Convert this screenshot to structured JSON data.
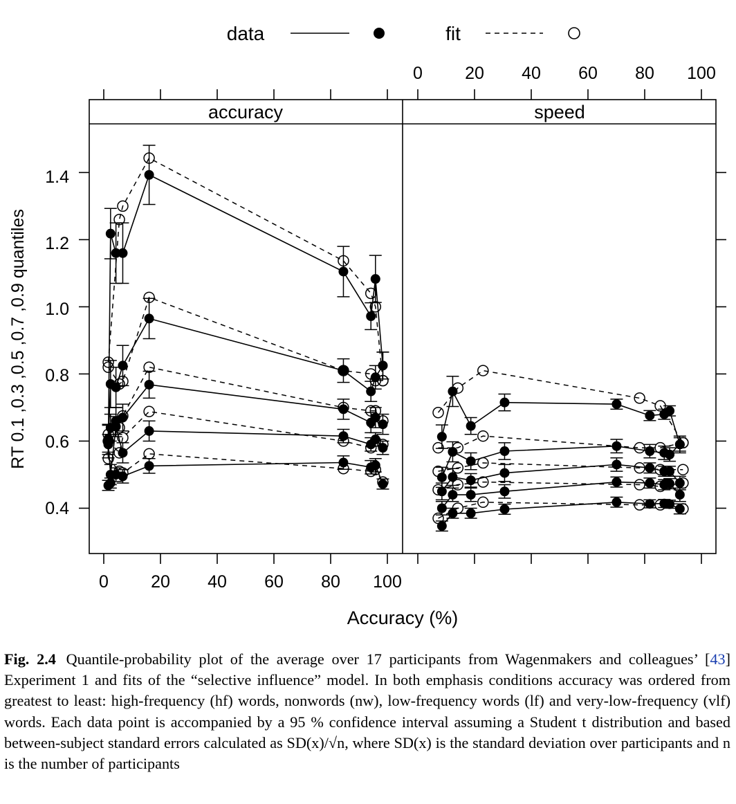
{
  "legend": {
    "data_label": "data",
    "fit_label": "fit"
  },
  "axes": {
    "xlabel": "Accuracy (%)",
    "ylabel": "RT 0.1 ,0.3 ,0.5 ,0.7 ,0.9 quantiles",
    "x_ticks": [
      "0",
      "20",
      "40",
      "60",
      "80",
      "100"
    ],
    "y_ticks": [
      "0.4",
      "0.6",
      "0.8",
      "1.0",
      "1.2",
      "1.4"
    ]
  },
  "panels": {
    "accuracy": "accuracy",
    "speed": "speed"
  },
  "caption": {
    "label": "Fig. 2.4",
    "before_cite": "Quantile-probability plot of the average over 17 participants from Wagenmakers and colleagues’ [",
    "cite": "43",
    "after_cite": "] Experiment 1 and fits of the “selective influence” model. In both emphasis conditions accuracy was ordered from greatest to least: high-frequency (hf) words, nonwords (nw), low-frequency words (lf) and very-low-frequency (vlf) words. Each data point is accompanied by a 95 % confidence interval assuming a Student t distribution and based between-subject standard errors calculated as SD(x)/√n, where SD(x) is the standard deviation over participants and n is the number of participants"
  },
  "chart_data": {
    "type": "line",
    "xlim": [
      -4,
      104
    ],
    "ylim": [
      0.265,
      1.545
    ],
    "grid": false,
    "legend_position": "top",
    "series_styles": {
      "data": "solid line, filled circles, 95% CI error bars",
      "fit": "dashed line, open circles"
    },
    "panels": [
      {
        "name": "accuracy",
        "data_x": [
          1.6,
          2.4,
          4.3,
          6.7,
          16,
          84.5,
          94.2,
          95.8,
          98.4
        ],
        "data_quantiles": [
          [
            0.468,
            0.475,
            0.5,
            0.495,
            0.526,
            0.536,
            0.522,
            0.528,
            0.472
          ],
          [
            0.59,
            0.5,
            0.643,
            0.565,
            0.63,
            0.615,
            0.59,
            0.605,
            0.58
          ],
          [
            0.607,
            0.64,
            0.66,
            0.67,
            0.768,
            0.695,
            0.655,
            0.67,
            0.65
          ],
          [
            0.6,
            0.77,
            0.76,
            0.825,
            0.965,
            0.81,
            0.748,
            0.79,
            0.825
          ],
          [
            0.6,
            1.218,
            1.16,
            1.16,
            1.393,
            1.105,
            0.972,
            1.083,
            0.825
          ]
        ],
        "data_ci": [
          [
            0.015,
            0.015,
            0.02,
            0.02,
            0.022,
            0.02,
            0.02,
            0.02,
            0.015
          ],
          [
            0.03,
            0.03,
            0.03,
            0.03,
            0.03,
            0.02,
            0.02,
            0.02,
            0.02
          ],
          [
            0.04,
            0.04,
            0.04,
            0.04,
            0.04,
            0.03,
            0.03,
            0.03,
            0.03
          ],
          [
            0.05,
            0.07,
            0.06,
            0.06,
            0.06,
            0.035,
            0.03,
            0.035,
            0.04
          ],
          [
            0.05,
            0.075,
            0.09,
            0.09,
            0.088,
            0.075,
            0.04,
            0.07,
            0.04
          ]
        ],
        "fit_x": [
          1.6,
          5.5,
          6.7,
          16,
          84.5,
          94.2,
          95.8,
          98.4
        ],
        "fit_quantiles": [
          [
            0.548,
            0.51,
            0.505,
            0.562,
            0.518,
            0.51,
            0.515,
            0.478
          ],
          [
            0.6,
            0.565,
            0.61,
            0.688,
            0.6,
            0.58,
            0.6,
            0.59
          ],
          [
            0.62,
            0.64,
            0.675,
            0.82,
            0.7,
            0.69,
            0.69,
            0.66
          ],
          [
            0.82,
            0.77,
            0.778,
            1.028,
            0.81,
            0.8,
            0.78,
            0.78
          ],
          [
            0.835,
            1.26,
            1.3,
            1.443,
            1.137,
            1.04,
            1.0,
            0.78
          ]
        ]
      },
      {
        "name": "speed",
        "data_x": [
          8.5,
          12.3,
          18.7,
          30.6,
          70.1,
          81.8,
          86.9,
          88.8,
          92.4
        ],
        "data_quantiles": [
          [
            0.347,
            0.385,
            0.385,
            0.397,
            0.418,
            0.413,
            0.414,
            0.412,
            0.398
          ],
          [
            0.4,
            0.44,
            0.44,
            0.45,
            0.478,
            0.475,
            0.47,
            0.473,
            0.44
          ],
          [
            0.45,
            0.493,
            0.483,
            0.505,
            0.53,
            0.52,
            0.51,
            0.51,
            0.475
          ],
          [
            0.492,
            0.568,
            0.54,
            0.57,
            0.585,
            0.57,
            0.565,
            0.56,
            0.59
          ],
          [
            0.613,
            0.748,
            0.645,
            0.715,
            0.71,
            0.676,
            0.68,
            0.69,
            0.59
          ]
        ],
        "data_ci": [
          [
            0.015,
            0.015,
            0.015,
            0.015,
            0.015,
            0.012,
            0.012,
            0.012,
            0.015
          ],
          [
            0.02,
            0.02,
            0.02,
            0.02,
            0.015,
            0.015,
            0.015,
            0.015,
            0.02
          ],
          [
            0.025,
            0.025,
            0.02,
            0.025,
            0.02,
            0.015,
            0.015,
            0.015,
            0.02
          ],
          [
            0.03,
            0.03,
            0.025,
            0.025,
            0.02,
            0.02,
            0.02,
            0.02,
            0.025
          ],
          [
            0.035,
            0.045,
            0.025,
            0.025,
            0.015,
            0.015,
            0.015,
            0.015,
            0.02
          ]
        ],
        "fit_x": [
          7.2,
          14.1,
          23.0,
          78.2,
          85.5,
          93.5
        ],
        "fit_quantiles": [
          [
            0.37,
            0.4,
            0.418,
            0.41,
            0.41,
            0.398
          ],
          [
            0.455,
            0.47,
            0.478,
            0.47,
            0.465,
            0.475
          ],
          [
            0.51,
            0.52,
            0.535,
            0.52,
            0.515,
            0.515
          ],
          [
            0.58,
            0.58,
            0.615,
            0.58,
            0.58,
            0.595
          ],
          [
            0.685,
            0.758,
            0.81,
            0.728,
            0.705,
            0.595
          ]
        ]
      }
    ]
  }
}
